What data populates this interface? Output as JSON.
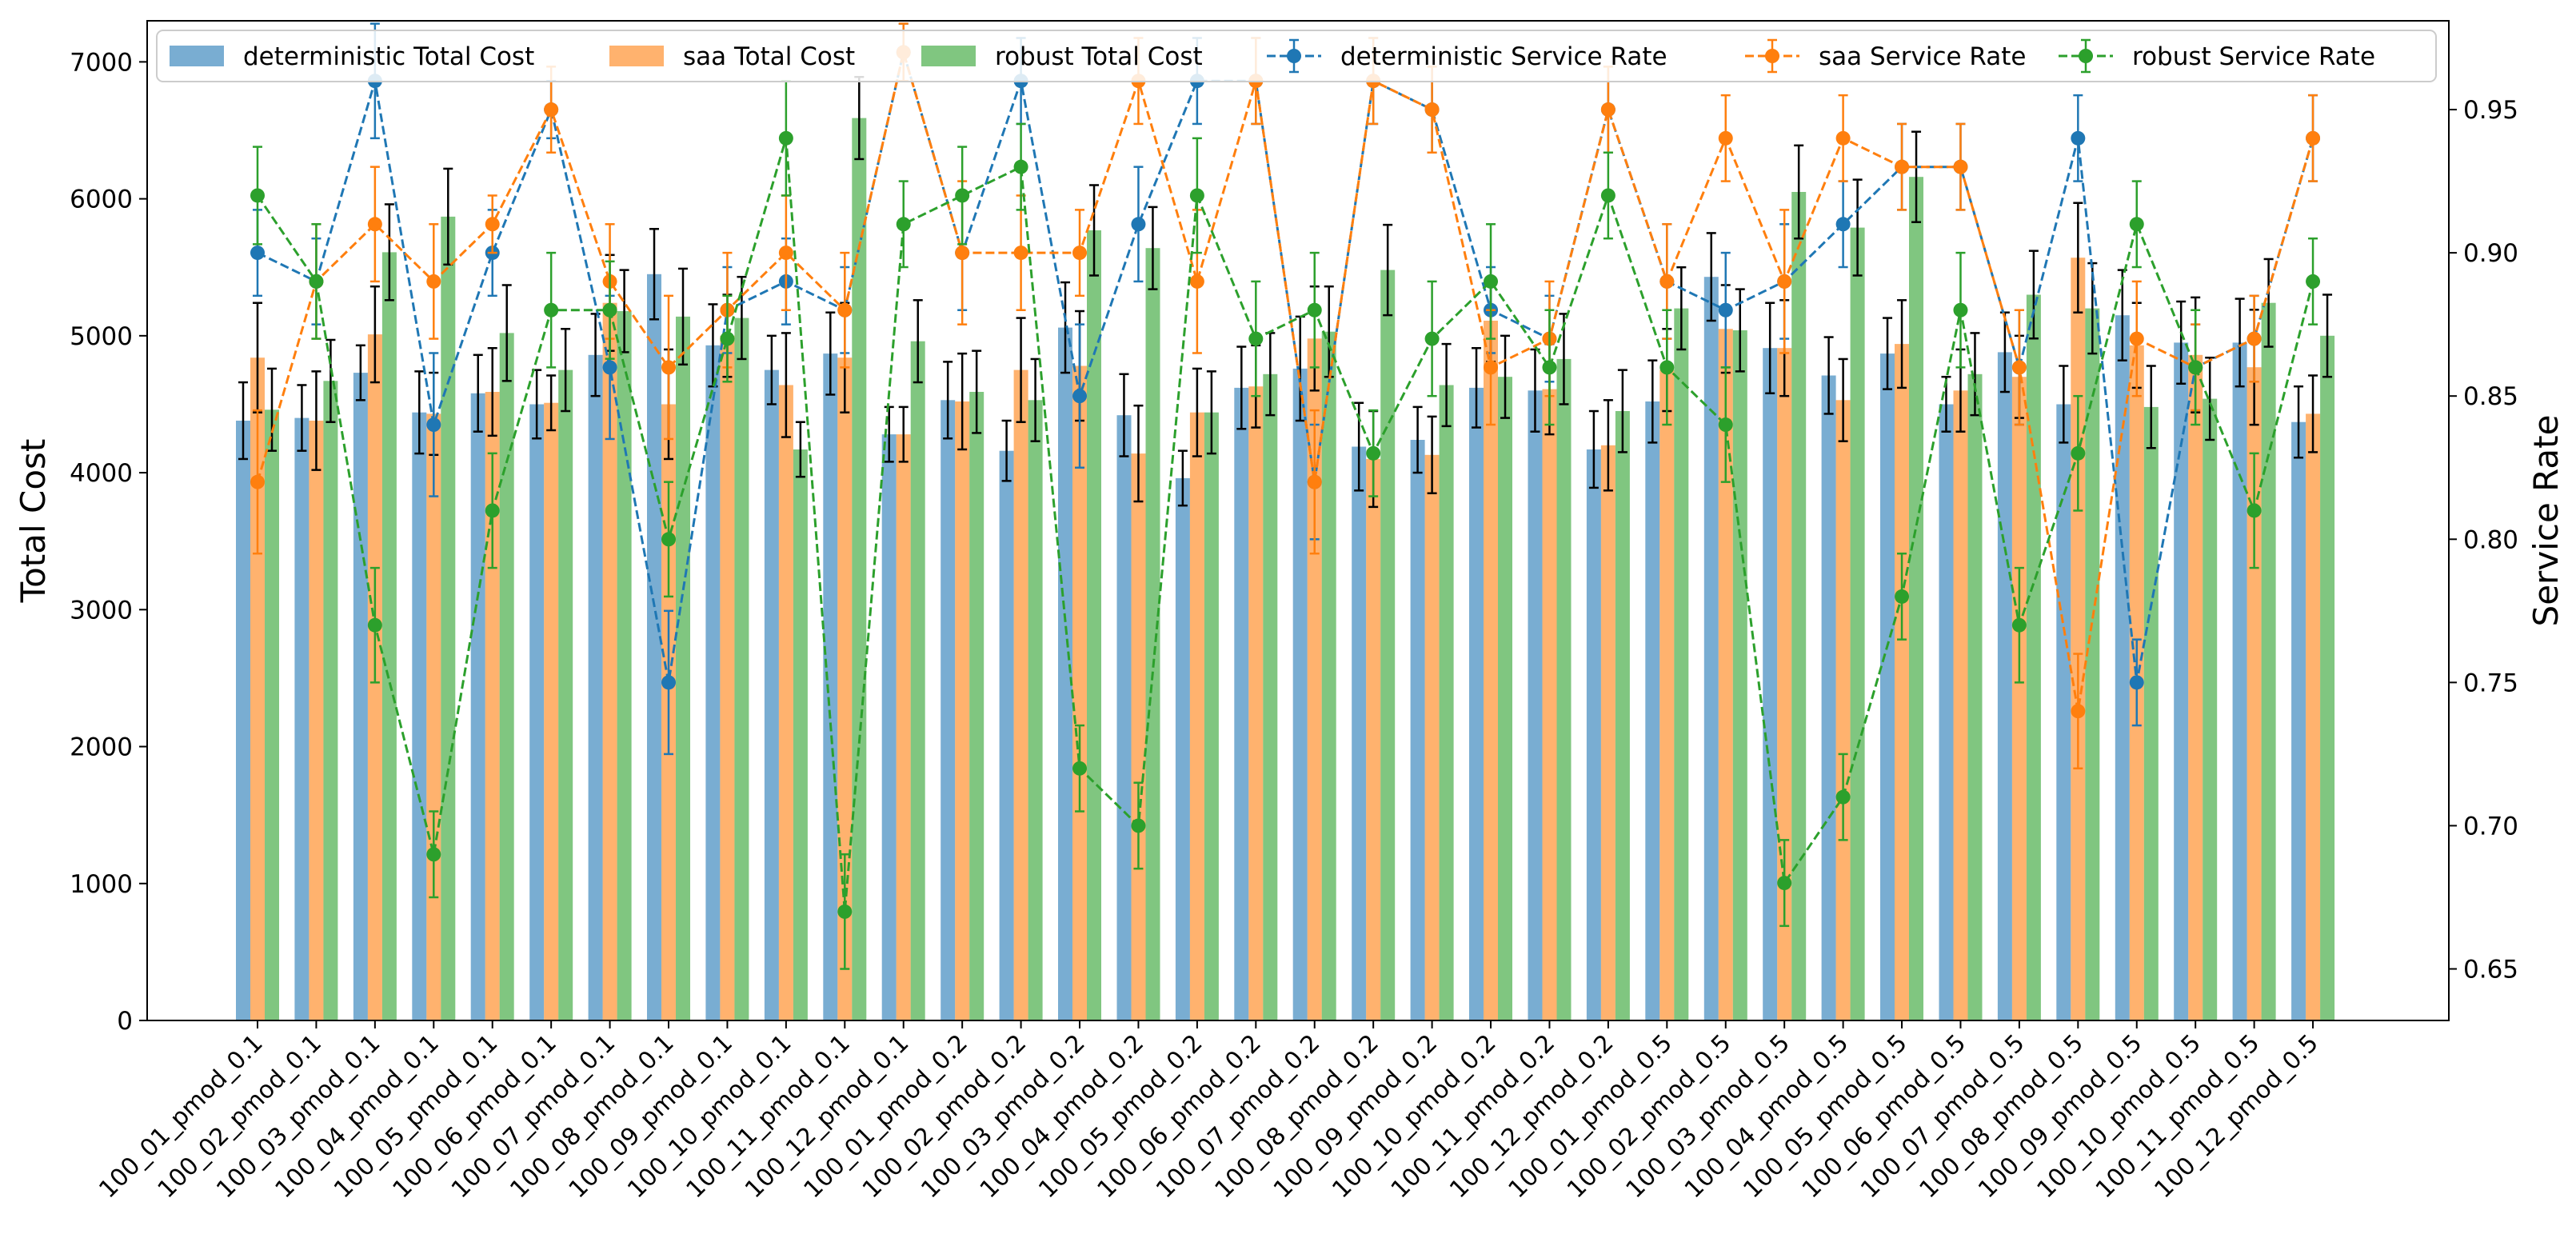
{
  "chart_data": {
    "type": "bar",
    "title": "",
    "xlabel": "",
    "ylabel": "Total Cost",
    "y2label": "Service Rate",
    "ylim": [
      0,
      7300
    ],
    "y2lim": [
      0.632,
      0.981
    ],
    "yticks": [
      0,
      1000,
      2000,
      3000,
      4000,
      5000,
      6000,
      7000
    ],
    "y2ticks": [
      0.65,
      0.7,
      0.75,
      0.8,
      0.85,
      0.9,
      0.95
    ],
    "y2tick_labels": [
      "0.65",
      "0.70",
      "0.75",
      "0.80",
      "0.85",
      "0.90",
      "0.95"
    ],
    "categories": [
      "100_01_pmod_0.1",
      "100_02_pmod_0.1",
      "100_03_pmod_0.1",
      "100_04_pmod_0.1",
      "100_05_pmod_0.1",
      "100_06_pmod_0.1",
      "100_07_pmod_0.1",
      "100_08_pmod_0.1",
      "100_09_pmod_0.1",
      "100_10_pmod_0.1",
      "100_11_pmod_0.1",
      "100_12_pmod_0.1",
      "100_01_pmod_0.2",
      "100_02_pmod_0.2",
      "100_03_pmod_0.2",
      "100_04_pmod_0.2",
      "100_05_pmod_0.2",
      "100_06_pmod_0.2",
      "100_07_pmod_0.2",
      "100_08_pmod_0.2",
      "100_09_pmod_0.2",
      "100_10_pmod_0.2",
      "100_11_pmod_0.2",
      "100_12_pmod_0.2",
      "100_01_pmod_0.5",
      "100_02_pmod_0.5",
      "100_03_pmod_0.5",
      "100_04_pmod_0.5",
      "100_05_pmod_0.5",
      "100_06_pmod_0.5",
      "100_07_pmod_0.5",
      "100_08_pmod_0.5",
      "100_09_pmod_0.5",
      "100_10_pmod_0.5",
      "100_11_pmod_0.5",
      "100_12_pmod_0.5"
    ],
    "bar_series": [
      {
        "name": "deterministic Total Cost",
        "color": "#1f77b4",
        "values": [
          4380,
          4400,
          4730,
          4440,
          4580,
          4500,
          4860,
          5450,
          4930,
          4750,
          4870,
          4280,
          4530,
          4160,
          5060,
          4420,
          3960,
          4620,
          4760,
          4190,
          4240,
          4620,
          4600,
          4170,
          4520,
          5430,
          4910,
          4710,
          4870,
          4500,
          4880,
          4500,
          5150,
          4950,
          4950,
          4370
        ],
        "errors": [
          280,
          240,
          200,
          300,
          280,
          250,
          300,
          330,
          300,
          250,
          300,
          200,
          280,
          220,
          330,
          300,
          200,
          300,
          380,
          320,
          240,
          290,
          300,
          280,
          300,
          320,
          330,
          280,
          260,
          200,
          290,
          280,
          330,
          300,
          320,
          260
        ]
      },
      {
        "name": "saa Total Cost",
        "color": "#ff7f0e",
        "values": [
          4840,
          4380,
          5010,
          4430,
          4590,
          4510,
          5240,
          4500,
          5000,
          4640,
          4840,
          4280,
          4520,
          4750,
          4780,
          4140,
          4440,
          4630,
          4980,
          4100,
          4130,
          5110,
          4610,
          4200,
          4750,
          5050,
          4910,
          4530,
          4940,
          4600,
          4700,
          5570,
          4930,
          4860,
          4770,
          4430
        ],
        "errors": [
          400,
          360,
          350,
          300,
          320,
          200,
          350,
          400,
          300,
          380,
          400,
          200,
          350,
          380,
          400,
          350,
          320,
          300,
          380,
          350,
          280,
          300,
          330,
          330,
          300,
          320,
          350,
          300,
          320,
          300,
          300,
          400,
          310,
          420,
          420,
          280
        ]
      },
      {
        "name": "robust Total Cost",
        "color": "#2ca02c",
        "values": [
          4460,
          4670,
          5610,
          5870,
          5020,
          4750,
          5180,
          5140,
          5130,
          4170,
          6590,
          4960,
          4590,
          4530,
          5770,
          5640,
          4440,
          4720,
          5030,
          5480,
          4640,
          4700,
          4830,
          4450,
          5200,
          5040,
          6050,
          5790,
          6160,
          4720,
          5300,
          5200,
          4480,
          4540,
          5240,
          5000
        ],
        "errors": [
          300,
          300,
          350,
          350,
          350,
          300,
          300,
          350,
          300,
          200,
          300,
          300,
          300,
          300,
          330,
          300,
          300,
          300,
          330,
          330,
          300,
          300,
          330,
          300,
          300,
          300,
          340,
          350,
          330,
          300,
          320,
          330,
          300,
          300,
          320,
          300
        ]
      }
    ],
    "line_series": [
      {
        "name": "deterministic Service Rate",
        "color": "#1f77b4",
        "values": [
          0.9,
          0.89,
          0.96,
          0.84,
          0.9,
          0.95,
          0.86,
          0.75,
          0.88,
          0.89,
          0.88,
          0.97,
          0.9,
          0.96,
          0.85,
          0.91,
          0.96,
          0.96,
          0.82,
          0.96,
          0.95,
          0.88,
          0.87,
          0.95,
          0.89,
          0.88,
          0.89,
          0.91,
          0.93,
          0.93,
          0.86,
          0.94,
          0.75,
          0.86,
          0.87,
          0.94
        ],
        "errors": [
          0.015,
          0.015,
          0.02,
          0.025,
          0.015,
          0.01,
          0.025,
          0.025,
          0.015,
          0.015,
          0.015,
          0.01,
          0.02,
          0.015,
          0.025,
          0.02,
          0.015,
          0.015,
          0.02,
          0.015,
          0.015,
          0.015,
          0.015,
          0.015,
          0.02,
          0.02,
          0.02,
          0.015,
          0.015,
          0.015,
          0.02,
          0.015,
          0.015,
          0.015,
          0.015,
          0.015
        ]
      },
      {
        "name": "saa Service Rate",
        "color": "#ff7f0e",
        "values": [
          0.82,
          0.89,
          0.91,
          0.89,
          0.91,
          0.95,
          0.89,
          0.86,
          0.88,
          0.9,
          0.88,
          0.97,
          0.9,
          0.9,
          0.9,
          0.96,
          0.89,
          0.96,
          0.82,
          0.96,
          0.95,
          0.86,
          0.87,
          0.95,
          0.89,
          0.94,
          0.89,
          0.94,
          0.93,
          0.93,
          0.86,
          0.74,
          0.87,
          0.86,
          0.87,
          0.94
        ],
        "errors": [
          0.025,
          0.02,
          0.02,
          0.02,
          0.01,
          0.015,
          0.02,
          0.025,
          0.02,
          0.02,
          0.02,
          0.01,
          0.025,
          0.02,
          0.015,
          0.015,
          0.025,
          0.015,
          0.025,
          0.015,
          0.015,
          0.02,
          0.02,
          0.015,
          0.02,
          0.015,
          0.025,
          0.015,
          0.015,
          0.015,
          0.02,
          0.02,
          0.02,
          0.015,
          0.015,
          0.015
        ]
      },
      {
        "name": "robust Service Rate",
        "color": "#2ca02c",
        "values": [
          0.92,
          0.89,
          0.77,
          0.69,
          0.81,
          0.88,
          0.88,
          0.8,
          0.87,
          0.94,
          0.67,
          0.91,
          0.92,
          0.93,
          0.72,
          0.7,
          0.92,
          0.87,
          0.88,
          0.83,
          0.87,
          0.89,
          0.86,
          0.92,
          0.86,
          0.84,
          0.68,
          0.71,
          0.78,
          0.88,
          0.77,
          0.83,
          0.91,
          0.86,
          0.81,
          0.89
        ],
        "errors": [
          0.017,
          0.02,
          0.02,
          0.015,
          0.02,
          0.02,
          0.017,
          0.02,
          0.015,
          0.02,
          0.02,
          0.015,
          0.017,
          0.015,
          0.015,
          0.015,
          0.02,
          0.02,
          0.02,
          0.015,
          0.02,
          0.02,
          0.02,
          0.015,
          0.02,
          0.02,
          0.015,
          0.015,
          0.015,
          0.02,
          0.02,
          0.02,
          0.015,
          0.02,
          0.02,
          0.015
        ]
      }
    ],
    "legend": {
      "location": "top",
      "entries": [
        "deterministic Total Cost",
        "saa Total Cost",
        "robust Total Cost",
        "deterministic Service Rate",
        "saa Service Rate",
        "robust Service Rate"
      ]
    }
  }
}
